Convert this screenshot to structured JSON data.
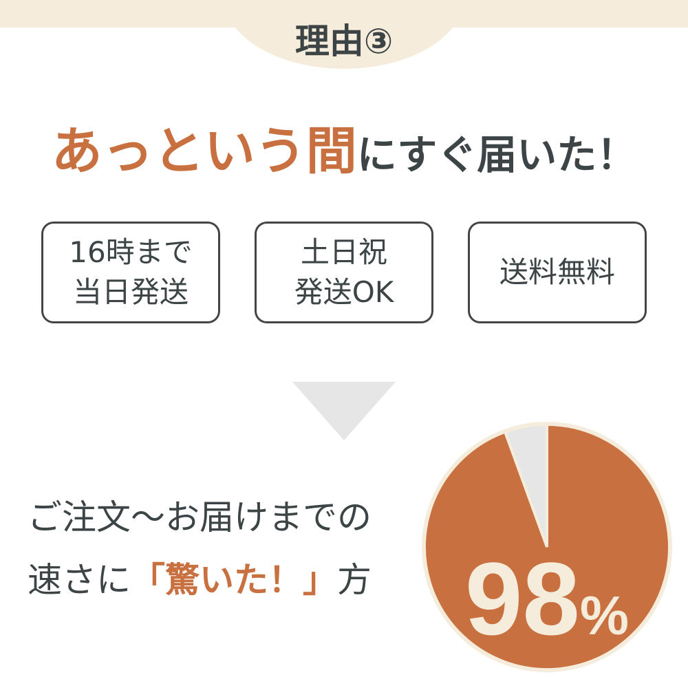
{
  "header": {
    "title": "理由③"
  },
  "headline": {
    "accent": "あっという間",
    "rest": "にすぐ届いた！"
  },
  "features": [
    {
      "label": "16時まで\n当日発送"
    },
    {
      "label": "土日祝\n発送OK"
    },
    {
      "label": "送料無料"
    }
  ],
  "summary": {
    "line1": "ご注文〜お届けまでの",
    "line2_before": "速さに",
    "line2_accent": "「驚いた！」",
    "line2_after": "方"
  },
  "pie": {
    "percent": 98,
    "percent_label": "98",
    "percent_sign": "%",
    "colors": {
      "main": "#c8703f",
      "rest": "#e6e6e6",
      "border": "#f5ecdc"
    }
  }
}
